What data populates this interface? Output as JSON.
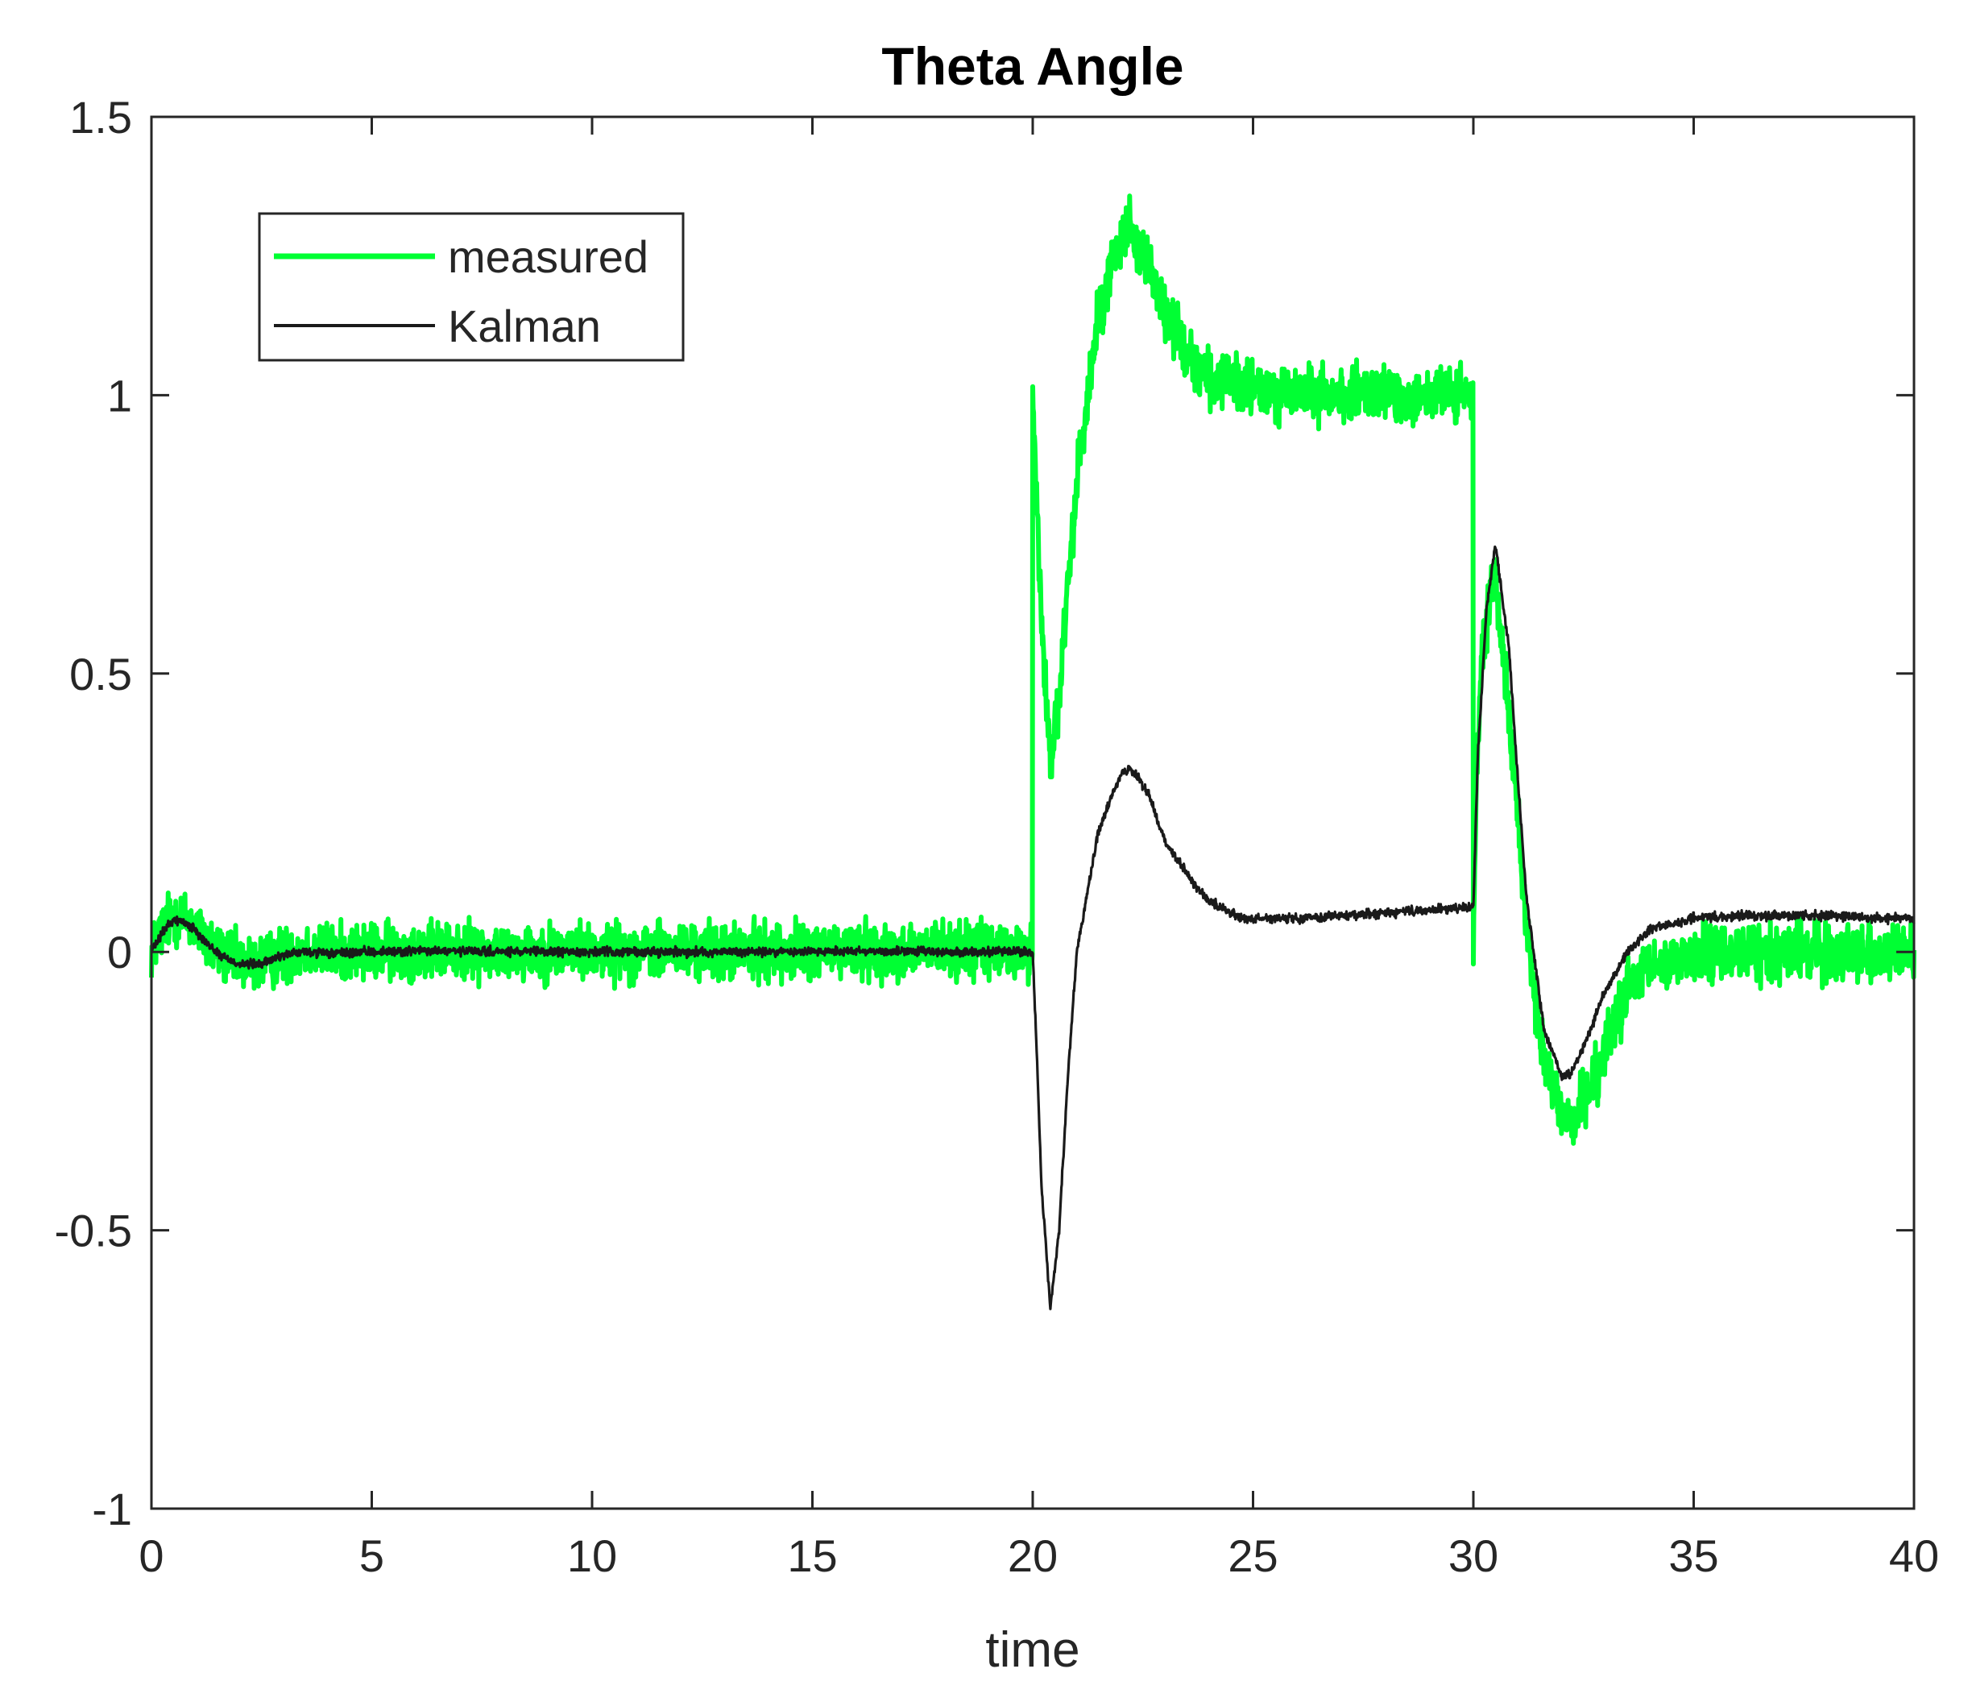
{
  "chart_data": {
    "type": "line",
    "title": "Theta Angle",
    "xlabel": "time",
    "ylabel": "",
    "xlim": [
      0,
      40
    ],
    "ylim": [
      -1,
      1.5
    ],
    "xticks": [
      0,
      5,
      10,
      15,
      20,
      25,
      30,
      35,
      40
    ],
    "xtick_labels": [
      "0",
      "5",
      "10",
      "15",
      "20",
      "25",
      "30",
      "35",
      "40"
    ],
    "yticks": [
      -1,
      -0.5,
      0,
      0.5,
      1,
      1.5
    ],
    "ytick_labels": [
      "-1",
      "-0.5",
      "0",
      "0.5",
      "1",
      "1.5"
    ],
    "grid": false,
    "legend_position": "top-left",
    "series": [
      {
        "name": "measured",
        "color": "#00ff33",
        "noise": 0.025,
        "x": [
          0,
          0.3,
          0.5,
          0.7,
          1.0,
          1.3,
          1.6,
          2.0,
          2.5,
          3.0,
          3.5,
          4.0,
          5.0,
          6.0,
          8.0,
          10.0,
          12.0,
          14.0,
          16.0,
          18.0,
          19.99,
          20.0,
          20.02,
          20.2,
          20.4,
          20.6,
          21.0,
          21.5,
          22.0,
          22.2,
          22.6,
          23.0,
          23.5,
          24.0,
          25.0,
          26.0,
          28.0,
          29.99,
          30.0,
          30.05,
          30.2,
          30.5,
          30.8,
          31.2,
          31.6,
          32.0,
          32.2,
          32.5,
          33.0,
          33.5,
          34.0,
          35.0,
          36.0,
          37.0,
          38.0,
          39.0,
          40.0
        ],
        "y": [
          0.0,
          0.05,
          0.065,
          0.062,
          0.045,
          0.015,
          -0.005,
          -0.02,
          -0.02,
          -0.005,
          0.005,
          0.0,
          0.0,
          0.002,
          0.0,
          0.002,
          0.0,
          0.0,
          0.002,
          0.003,
          0.0,
          1.0,
          0.95,
          0.6,
          0.34,
          0.45,
          0.85,
          1.15,
          1.29,
          1.3,
          1.24,
          1.15,
          1.08,
          1.03,
          1.01,
          1.0,
          1.0,
          1.0,
          0.0,
          0.25,
          0.55,
          0.68,
          0.45,
          0.05,
          -0.2,
          -0.29,
          -0.3,
          -0.27,
          -0.17,
          -0.07,
          -0.03,
          -0.005,
          0.0,
          0.0,
          0.0,
          0.0,
          0.0
        ]
      },
      {
        "name": "Kalman",
        "color": "#1a1a1a",
        "noise": 0.004,
        "x": [
          0,
          0.3,
          0.5,
          0.7,
          1.0,
          1.3,
          1.6,
          2.0,
          2.5,
          3.0,
          3.5,
          4.0,
          5.0,
          6.0,
          8.0,
          10.0,
          12.0,
          14.0,
          16.0,
          18.0,
          20.0,
          20.1,
          20.2,
          20.4,
          20.6,
          20.8,
          21.0,
          21.5,
          22.0,
          22.2,
          22.6,
          23.0,
          23.5,
          24.0,
          24.8,
          26.0,
          28.0,
          29.99,
          30.0,
          30.1,
          30.3,
          30.5,
          30.8,
          31.2,
          31.6,
          32.0,
          32.2,
          32.5,
          33.0,
          33.5,
          34.0,
          35.0,
          36.0,
          37.0,
          38.0,
          39.0,
          40.0
        ],
        "y": [
          0.0,
          0.04,
          0.058,
          0.055,
          0.04,
          0.012,
          -0.008,
          -0.022,
          -0.022,
          -0.005,
          0.0,
          -0.003,
          0.0,
          0.002,
          0.0,
          0.0,
          0.0,
          0.0,
          0.002,
          0.0,
          0.0,
          -0.2,
          -0.42,
          -0.64,
          -0.5,
          -0.22,
          0.0,
          0.22,
          0.32,
          0.33,
          0.29,
          0.2,
          0.14,
          0.09,
          0.06,
          0.06,
          0.07,
          0.08,
          0.08,
          0.35,
          0.62,
          0.73,
          0.55,
          0.1,
          -0.14,
          -0.22,
          -0.22,
          -0.17,
          -0.07,
          0.0,
          0.04,
          0.06,
          0.065,
          0.065,
          0.065,
          0.062,
          0.06
        ]
      }
    ]
  }
}
